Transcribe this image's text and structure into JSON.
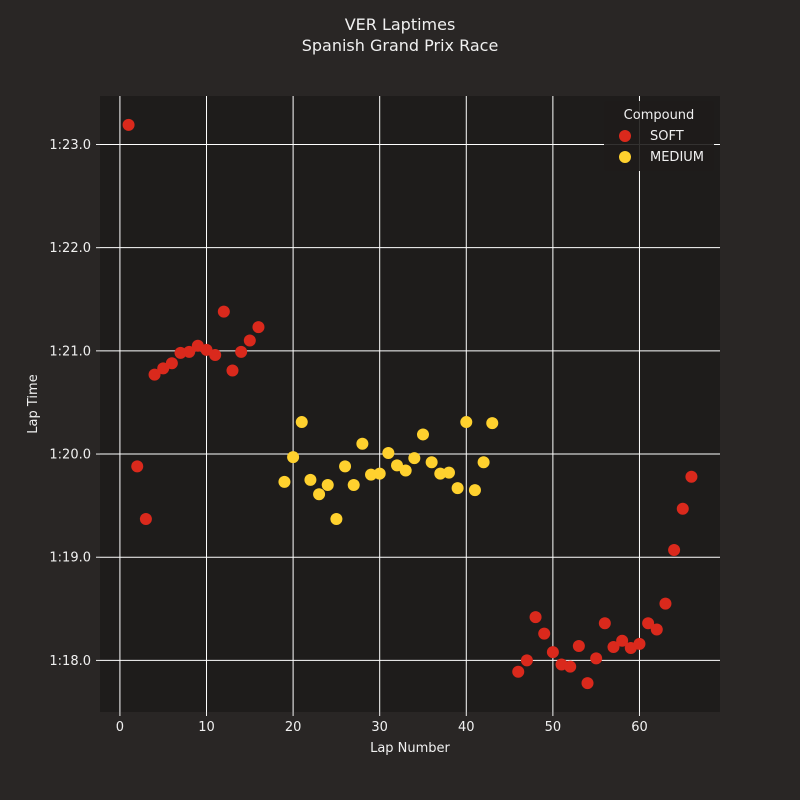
{
  "chart_data": {
    "type": "scatter",
    "title": "VER Laptimes",
    "subtitle": "Spanish Grand Prix Race",
    "xlabel": "Lap Number",
    "ylabel": "Lap Time",
    "xlim": [
      -2.3,
      69.3
    ],
    "ylim": [
      77.5,
      83.47
    ],
    "x_ticks": [
      0,
      10,
      20,
      30,
      40,
      50,
      60
    ],
    "x_tick_labels": [
      "0",
      "10",
      "20",
      "30",
      "40",
      "50",
      "60"
    ],
    "y_ticks": [
      78,
      79,
      80,
      81,
      82,
      83
    ],
    "y_tick_labels": [
      "1:18.0",
      "1:19.0",
      "1:20.0",
      "1:21.0",
      "1:22.0",
      "1:23.0"
    ],
    "grid": true,
    "legend": {
      "title": "Compound",
      "position": "top-right"
    },
    "series": [
      {
        "name": "SOFT",
        "color": "#da291c",
        "points": [
          [
            1,
            83.19
          ],
          [
            2,
            79.88
          ],
          [
            3,
            79.37
          ],
          [
            4,
            80.77
          ],
          [
            5,
            80.83
          ],
          [
            6,
            80.88
          ],
          [
            7,
            80.98
          ],
          [
            8,
            80.99
          ],
          [
            9,
            81.05
          ],
          [
            10,
            81.01
          ],
          [
            11,
            80.96
          ],
          [
            12,
            81.38
          ],
          [
            13,
            80.81
          ],
          [
            14,
            80.99
          ],
          [
            15,
            81.1
          ],
          [
            16,
            81.23
          ],
          [
            46,
            77.89
          ],
          [
            47,
            78.0
          ],
          [
            48,
            78.42
          ],
          [
            49,
            78.26
          ],
          [
            50,
            78.08
          ],
          [
            51,
            77.96
          ],
          [
            52,
            77.94
          ],
          [
            53,
            78.14
          ],
          [
            54,
            77.78
          ],
          [
            55,
            78.02
          ],
          [
            56,
            78.36
          ],
          [
            57,
            78.13
          ],
          [
            58,
            78.19
          ],
          [
            59,
            78.12
          ],
          [
            60,
            78.16
          ],
          [
            61,
            78.36
          ],
          [
            62,
            78.3
          ],
          [
            63,
            78.55
          ],
          [
            64,
            79.07
          ],
          [
            65,
            79.47
          ],
          [
            66,
            79.78
          ]
        ]
      },
      {
        "name": "MEDIUM",
        "color": "#ffd12e",
        "points": [
          [
            19,
            79.73
          ],
          [
            20,
            79.97
          ],
          [
            21,
            80.31
          ],
          [
            22,
            79.75
          ],
          [
            23,
            79.61
          ],
          [
            24,
            79.7
          ],
          [
            25,
            79.37
          ],
          [
            26,
            79.88
          ],
          [
            27,
            79.7
          ],
          [
            28,
            80.1
          ],
          [
            29,
            79.8
          ],
          [
            30,
            79.81
          ],
          [
            31,
            80.01
          ],
          [
            32,
            79.89
          ],
          [
            33,
            79.84
          ],
          [
            34,
            79.96
          ],
          [
            35,
            80.19
          ],
          [
            36,
            79.92
          ],
          [
            37,
            79.81
          ],
          [
            38,
            79.82
          ],
          [
            39,
            79.67
          ],
          [
            40,
            80.31
          ],
          [
            41,
            79.65
          ],
          [
            42,
            79.92
          ],
          [
            43,
            80.3
          ]
        ]
      }
    ]
  }
}
